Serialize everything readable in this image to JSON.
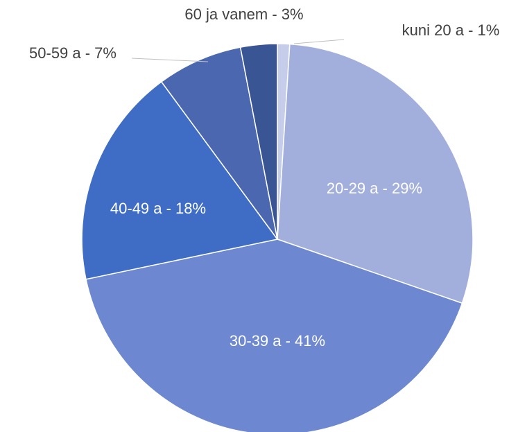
{
  "chart_data": {
    "type": "pie",
    "values": [
      1,
      29,
      41,
      18,
      7,
      3
    ],
    "value_labels": [
      "kuni 20 a -  1%",
      "20-29 a -  29%",
      "30-39 a -  41%",
      "40-49 a -  18%",
      "50-59 a -  7%",
      "60 ja vanem -  3%"
    ],
    "colors": [
      "#c5cdea",
      "#a2afdc",
      "#6d88d0",
      "#3f6cc4",
      "#4a67b0",
      "#3a5594"
    ]
  }
}
